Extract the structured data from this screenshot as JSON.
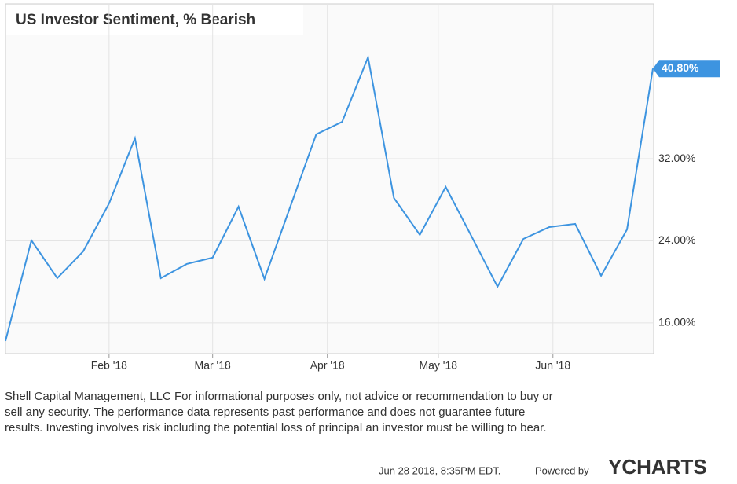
{
  "chart_data": {
    "type": "line",
    "title": "US Investor Sentiment, % Bearish",
    "series": [
      {
        "name": "US Investor Sentiment, % Bearish",
        "color": "#3d94e0",
        "values": [
          14.24,
          24.04,
          20.36,
          22.97,
          27.64,
          34.0,
          20.36,
          21.74,
          22.36,
          27.33,
          20.29,
          27.33,
          34.38,
          35.6,
          41.9,
          28.17,
          24.58,
          29.25,
          24.42,
          19.52,
          24.19,
          25.34,
          25.65,
          20.6,
          25.1,
          40.8
        ],
        "last_label": {
          "value": 40.8,
          "label": "40.80%"
        }
      }
    ],
    "xlim": [
      0,
      25
    ],
    "xticks": [
      {
        "value": 4,
        "label": "Feb '18"
      },
      {
        "value": 8,
        "label": "Mar '18"
      },
      {
        "value": 12.43,
        "label": "Apr '18"
      },
      {
        "value": 16.71,
        "label": "May '18"
      },
      {
        "value": 21.14,
        "label": "Jun '18"
      }
    ],
    "ylim": [
      13,
      47.1
    ],
    "yticks": [
      {
        "value": 16,
        "label": "16.00%"
      },
      {
        "value": 24,
        "label": "24.00%"
      },
      {
        "value": 32,
        "label": "32.00%"
      }
    ],
    "grid": true
  },
  "footer": {
    "disclaimer": [
      "Shell Capital Management, LLC For informational purposes only, not advice or recommendation to buy or",
      "sell any security. The performance data represents past performance and does not guarantee future",
      "results. Investing involves risk including the potential loss of principal an investor must be willing to bear."
    ],
    "timestamp": "Jun 28 2018, 8:35PM EDT.",
    "powered_by": "Powered by",
    "brand": "YCHARTS"
  }
}
